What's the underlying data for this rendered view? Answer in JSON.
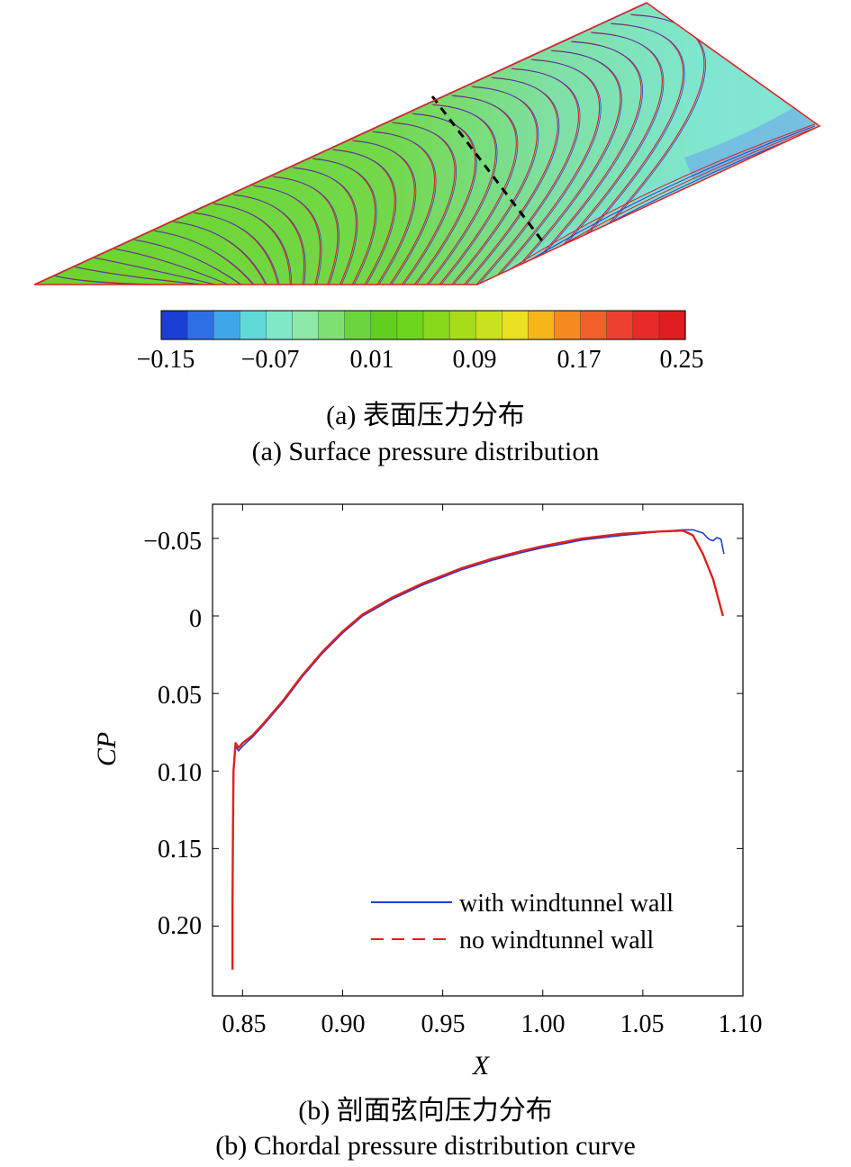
{
  "panel_a": {
    "colorbar": {
      "ticks": [
        "−0.15",
        "−0.07",
        "0.01",
        "0.09",
        "0.17",
        "0.25"
      ],
      "min": -0.15,
      "max": 0.25,
      "levels": 21,
      "colors": [
        "#1a3fd6",
        "#2f6fe6",
        "#3fa6ea",
        "#5fd8d8",
        "#7fe8c8",
        "#8ee8a8",
        "#7ee070",
        "#6ad63c",
        "#62cf20",
        "#6cd61e",
        "#88d81c",
        "#a6dc1a",
        "#c8e21c",
        "#e8e020",
        "#f7b51c",
        "#f58a1e",
        "#f0602a",
        "#ee4030",
        "#e82a2a",
        "#e01e20"
      ]
    },
    "caption_cn": "(a) 表面压力分布",
    "caption_en": "(a) Surface pressure distribution"
  },
  "panel_b": {
    "caption_cn": "(b) 剖面弦向压力分布",
    "caption_en": "(b) Chordal pressure distribution curve"
  },
  "chart_data": [
    {
      "type": "contour",
      "title": "",
      "colorbar_ticks": [
        -0.15,
        -0.07,
        0.01,
        0.09,
        0.17,
        0.25
      ],
      "colorbar_range": [
        -0.15,
        0.25
      ]
    },
    {
      "type": "line",
      "title": "",
      "xlabel": "X",
      "ylabel": "CP",
      "xlim": [
        0.835,
        1.1
      ],
      "ylim": [
        0.245,
        -0.072
      ],
      "y_inverted": true,
      "xticks": [
        0.85,
        0.9,
        0.95,
        1.0,
        1.05,
        1.1
      ],
      "xtick_labels": [
        "0.85",
        "0.90",
        "0.95",
        "1.00",
        "1.05",
        "1.10"
      ],
      "yticks": [
        -0.05,
        0,
        0.05,
        0.1,
        0.15,
        0.2
      ],
      "ytick_labels": [
        "−0.05",
        "0",
        "0.05",
        "0.10",
        "0.15",
        "0.20"
      ],
      "legend_position": "bottom-right",
      "grid": false,
      "series": [
        {
          "name": "with windtunnel wall",
          "color": "#1f3fd0",
          "dash": "solid",
          "points": [
            [
              0.845,
              0.228
            ],
            [
              0.845,
              0.185
            ],
            [
              0.8452,
              0.14
            ],
            [
              0.8455,
              0.1
            ],
            [
              0.8465,
              0.084
            ],
            [
              0.848,
              0.087
            ],
            [
              0.85,
              0.084
            ],
            [
              0.855,
              0.078
            ],
            [
              0.86,
              0.071
            ],
            [
              0.87,
              0.056
            ],
            [
              0.88,
              0.039
            ],
            [
              0.89,
              0.024
            ],
            [
              0.9,
              0.011
            ],
            [
              0.91,
              0.0
            ],
            [
              0.925,
              -0.011
            ],
            [
              0.94,
              -0.02
            ],
            [
              0.95,
              -0.025
            ],
            [
              0.96,
              -0.03
            ],
            [
              0.975,
              -0.036
            ],
            [
              0.99,
              -0.041
            ],
            [
              1.0,
              -0.044
            ],
            [
              1.02,
              -0.049
            ],
            [
              1.04,
              -0.052
            ],
            [
              1.06,
              -0.0545
            ],
            [
              1.07,
              -0.0555
            ],
            [
              1.075,
              -0.0555
            ],
            [
              1.08,
              -0.0535
            ],
            [
              1.083,
              -0.0495
            ],
            [
              1.085,
              -0.0485
            ],
            [
              1.087,
              -0.0505
            ],
            [
              1.089,
              -0.0495
            ],
            [
              1.0905,
              -0.04
            ]
          ]
        },
        {
          "name": "no windtunnel wall",
          "color": "#e02020",
          "dash": "dashed",
          "points": [
            [
              0.845,
              0.228
            ],
            [
              0.845,
              0.185
            ],
            [
              0.8452,
              0.14
            ],
            [
              0.8455,
              0.1
            ],
            [
              0.8465,
              0.082
            ],
            [
              0.848,
              0.085
            ],
            [
              0.85,
              0.082
            ],
            [
              0.855,
              0.077
            ],
            [
              0.86,
              0.07
            ],
            [
              0.87,
              0.055
            ],
            [
              0.88,
              0.038
            ],
            [
              0.89,
              0.023
            ],
            [
              0.9,
              0.01
            ],
            [
              0.91,
              -0.001
            ],
            [
              0.925,
              -0.012
            ],
            [
              0.94,
              -0.021
            ],
            [
              0.95,
              -0.026
            ],
            [
              0.96,
              -0.031
            ],
            [
              0.975,
              -0.037
            ],
            [
              0.99,
              -0.042
            ],
            [
              1.0,
              -0.045
            ],
            [
              1.02,
              -0.05
            ],
            [
              1.04,
              -0.053
            ],
            [
              1.06,
              -0.0545
            ],
            [
              1.07,
              -0.055
            ],
            [
              1.075,
              -0.052
            ],
            [
              1.08,
              -0.04
            ],
            [
              1.085,
              -0.024
            ],
            [
              1.09,
              0.0
            ]
          ]
        }
      ]
    }
  ]
}
